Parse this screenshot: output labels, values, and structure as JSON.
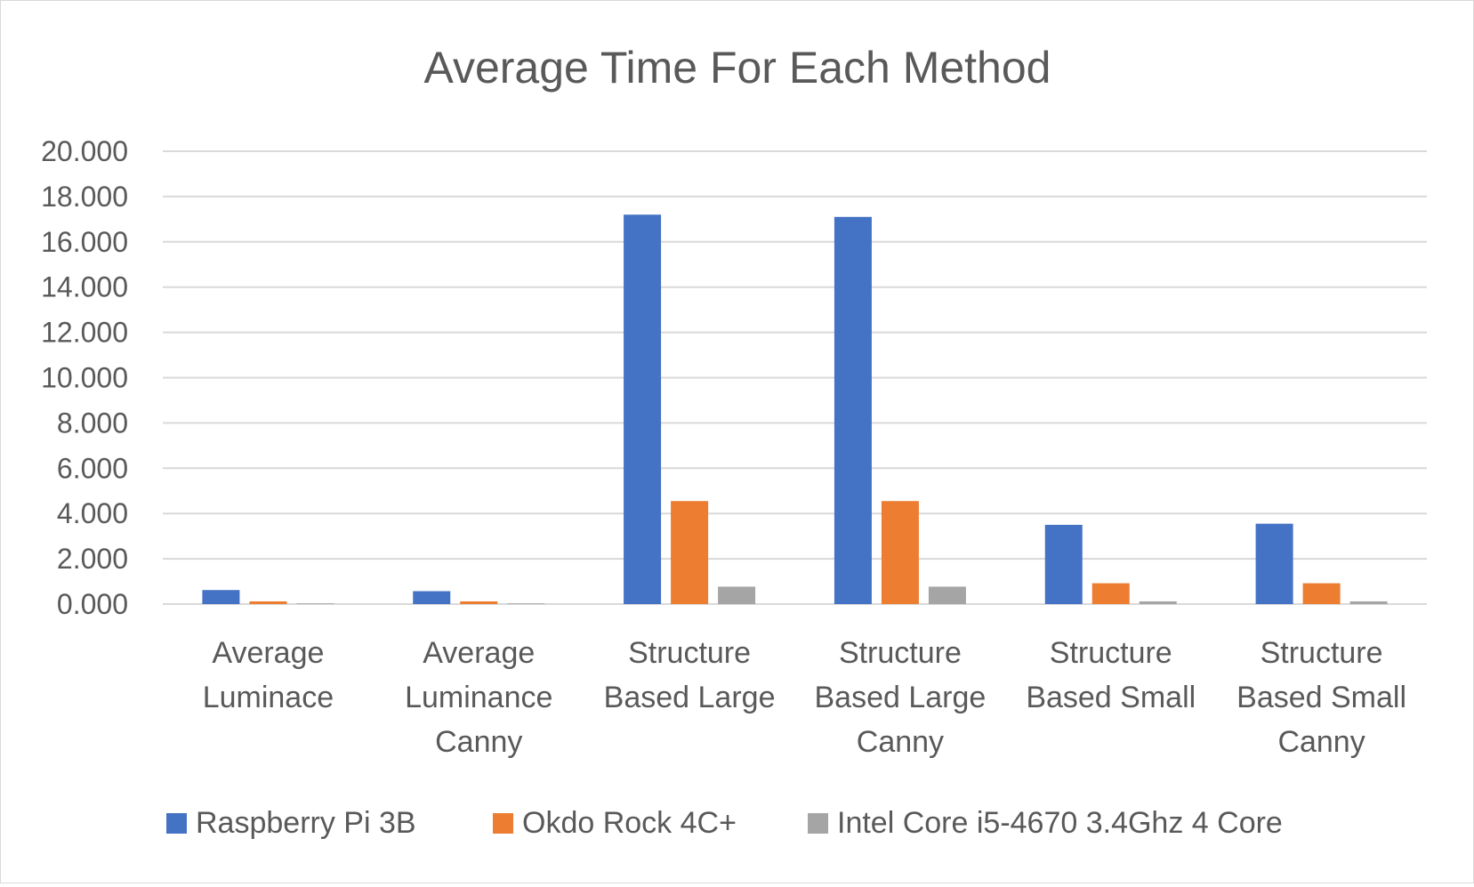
{
  "chart_data": {
    "type": "bar",
    "title": "Average Time For Each Method",
    "xlabel": "",
    "ylabel": "",
    "ylim": [
      0,
      20
    ],
    "ytick_step": 2,
    "ytick_labels": [
      "0.000",
      "2.000",
      "4.000",
      "6.000",
      "8.000",
      "10.000",
      "12.000",
      "14.000",
      "16.000",
      "18.000",
      "20.000"
    ],
    "grid": true,
    "legend_position": "bottom",
    "categories": [
      [
        "Average",
        "Luminace"
      ],
      [
        "Average",
        "Luminance",
        "Canny"
      ],
      [
        "Structure",
        "Based Large"
      ],
      [
        "Structure",
        "Based Large",
        "Canny"
      ],
      [
        "Structure",
        "Based Small"
      ],
      [
        "Structure",
        "Based Small",
        "Canny"
      ]
    ],
    "series": [
      {
        "name": "Raspberry Pi 3B",
        "color": "#4472c4",
        "values": [
          0.62,
          0.57,
          17.2,
          17.1,
          3.5,
          3.55
        ]
      },
      {
        "name": "Okdo Rock 4C+",
        "color": "#ed7d31",
        "values": [
          0.12,
          0.12,
          4.55,
          4.55,
          0.92,
          0.92
        ]
      },
      {
        "name": "Intel Core i5-4670 3.4Ghz 4 Core",
        "color": "#a5a5a5",
        "values": [
          0.03,
          0.03,
          0.77,
          0.77,
          0.12,
          0.12
        ]
      }
    ]
  }
}
